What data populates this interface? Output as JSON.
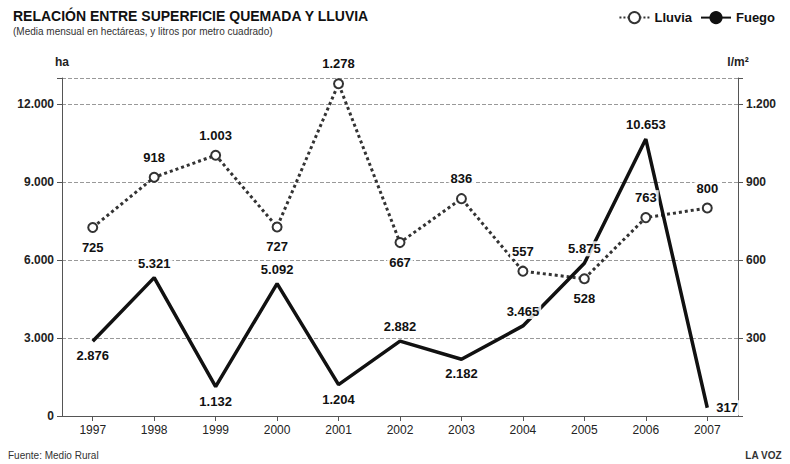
{
  "chart_data": {
    "type": "line",
    "title": "RELACIÓN ENTRE SUPERFICIE QUEMADA Y LLUVIA",
    "subtitle": "(Media mensual en hectáreas, y litros por metro cuadrado)",
    "source": "Fuente: Medio Rural",
    "credit": "LA VOZ",
    "categories": [
      "1997",
      "1998",
      "1999",
      "2000",
      "2001",
      "2002",
      "2003",
      "2004",
      "2005",
      "2006",
      "2007"
    ],
    "y_label": "ha",
    "y2_label": "l/m²",
    "ylim": [
      0,
      13000
    ],
    "yticks": [
      0,
      {
        "value": 3000,
        "label": "3.000"
      },
      {
        "value": 6000,
        "label": "6.000"
      },
      {
        "value": 9000,
        "label": "9.000"
      },
      {
        "value": 12000,
        "label": "12.000"
      }
    ],
    "y2lim": [
      0,
      1300
    ],
    "y2ticks": [
      300,
      600,
      900,
      {
        "value": 1200,
        "label": "1.200"
      }
    ],
    "grid": true,
    "legend": "top-right",
    "data_labels": true,
    "series": [
      {
        "name": "Lluvia",
        "axis": "y2",
        "color": "#333333",
        "marker": "circle",
        "line_style": "dotted",
        "values": [
          725,
          918,
          1003,
          727,
          1278,
          667,
          836,
          557,
          528,
          763,
          800
        ],
        "value_labels": [
          "725",
          "918",
          "1.003",
          "727",
          "1.278",
          "667",
          "836",
          "557",
          "528",
          "763",
          "800"
        ]
      },
      {
        "name": "Fuego",
        "color": "#111111",
        "marker": "none",
        "line_style": "solid",
        "values": [
          2876,
          5321,
          1132,
          5092,
          1204,
          2882,
          2182,
          3465,
          5875,
          10653,
          317
        ],
        "value_labels": [
          "2.876",
          "5.321",
          "1.132",
          "5.092",
          "1.204",
          "2.882",
          "2.182",
          "3.465",
          "5.875",
          "10.653",
          "317"
        ]
      }
    ]
  }
}
